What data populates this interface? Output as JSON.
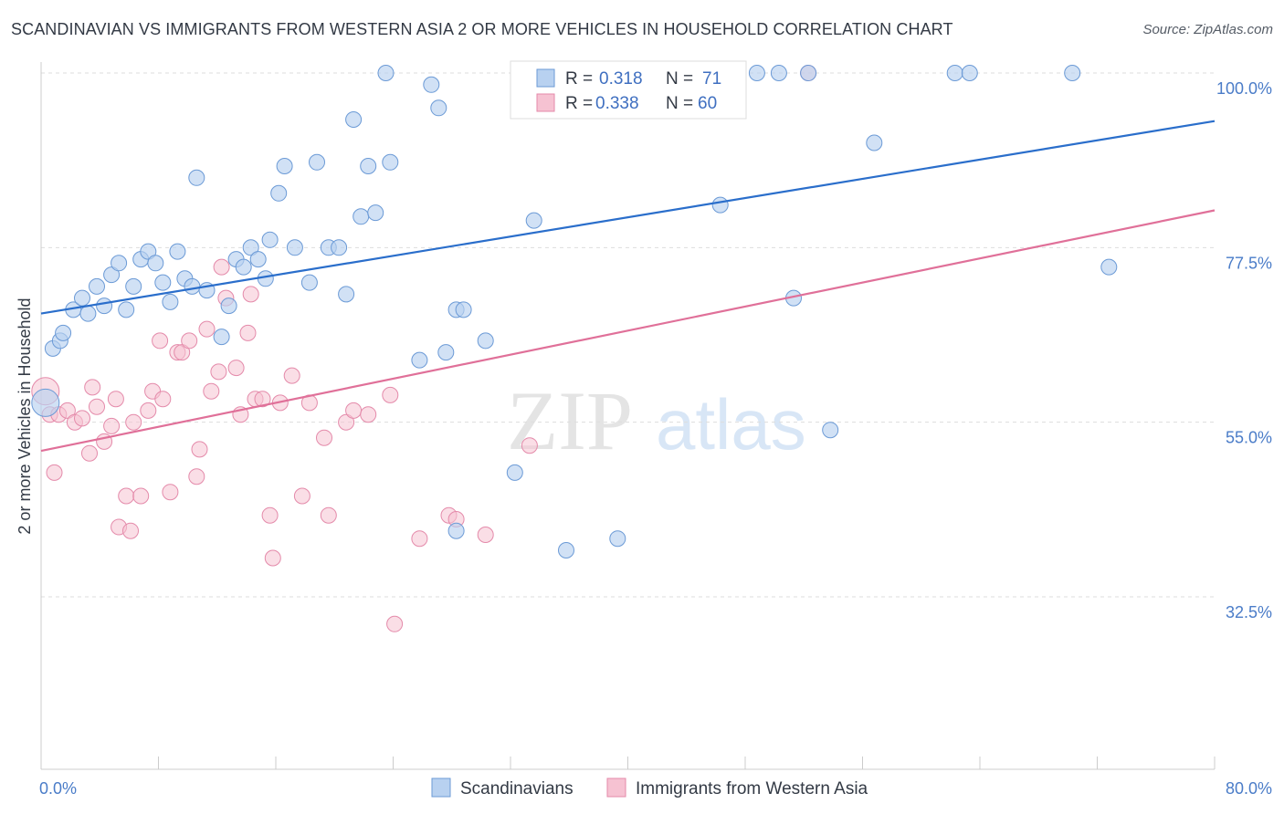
{
  "title": "SCANDINAVIAN VS IMMIGRANTS FROM WESTERN ASIA 2 OR MORE VEHICLES IN HOUSEHOLD CORRELATION CHART",
  "source": "Source: ZipAtlas.com",
  "watermark": {
    "zip": "ZIP",
    "atlas": "atlas"
  },
  "colors": {
    "blue_fill": "#b8d1f0",
    "blue_stroke": "#6b9ad6",
    "blue_line": "#2a6ecb",
    "pink_fill": "#f6c2d2",
    "pink_stroke": "#e48aaa",
    "pink_line": "#e07099",
    "axis_text": "#4a7cc8",
    "grid": "#dddddd"
  },
  "legend": {
    "series": [
      {
        "r_label": "R =",
        "r_value": "0.318",
        "n_label": "N =",
        "n_value": "71"
      },
      {
        "r_label": "R =",
        "r_value": "0.338",
        "n_label": "N =",
        "n_value": "60"
      }
    ]
  },
  "bottom_legend": [
    "Scandinavians",
    "Immigrants from Western Asia"
  ],
  "chart_data": {
    "type": "scatter",
    "xlabel": "",
    "ylabel": "2 or more Vehicles in Household",
    "xlim": [
      0,
      80
    ],
    "ylim": [
      10,
      104
    ],
    "x_tick_labels": [
      "0.0%",
      "80.0%"
    ],
    "y_ticks": [
      32.5,
      55.0,
      77.5,
      100.0
    ],
    "y_tick_labels": [
      "32.5%",
      "55.0%",
      "77.5%",
      "100.0%"
    ],
    "grid": true,
    "legend_position": "top-center",
    "series": [
      {
        "name": "Scandinavians",
        "color": "#b8d1f0",
        "trend": {
          "x": [
            0,
            80
          ],
          "y": [
            69.0,
            93.8
          ]
        },
        "points": [
          [
            0.3,
            57.5
          ],
          [
            0.8,
            64.5
          ],
          [
            1.3,
            65.5
          ],
          [
            1.5,
            66.5
          ],
          [
            2.2,
            69.5
          ],
          [
            2.8,
            71.0
          ],
          [
            3.2,
            69.0
          ],
          [
            3.8,
            72.5
          ],
          [
            4.3,
            70.0
          ],
          [
            4.8,
            74.0
          ],
          [
            5.3,
            75.5
          ],
          [
            5.8,
            69.5
          ],
          [
            6.3,
            72.5
          ],
          [
            6.8,
            76.0
          ],
          [
            7.3,
            77.0
          ],
          [
            7.8,
            75.5
          ],
          [
            8.3,
            73.0
          ],
          [
            8.8,
            70.5
          ],
          [
            9.3,
            77.0
          ],
          [
            9.8,
            73.5
          ],
          [
            10.3,
            72.5
          ],
          [
            10.6,
            86.5
          ],
          [
            11.3,
            72.0
          ],
          [
            12.3,
            66.0
          ],
          [
            12.8,
            70.0
          ],
          [
            13.3,
            76.0
          ],
          [
            13.8,
            75.0
          ],
          [
            14.3,
            77.5
          ],
          [
            14.8,
            76.0
          ],
          [
            15.3,
            73.5
          ],
          [
            15.6,
            78.5
          ],
          [
            16.2,
            84.5
          ],
          [
            16.6,
            88.0
          ],
          [
            17.3,
            77.5
          ],
          [
            18.8,
            88.5
          ],
          [
            18.3,
            73.0
          ],
          [
            19.6,
            77.5
          ],
          [
            20.3,
            77.5
          ],
          [
            20.8,
            71.5
          ],
          [
            21.3,
            94.0
          ],
          [
            21.8,
            81.5
          ],
          [
            22.3,
            88.0
          ],
          [
            22.8,
            82.0
          ],
          [
            23.5,
            100.0
          ],
          [
            23.8,
            88.5
          ],
          [
            25.8,
            63.0
          ],
          [
            26.6,
            98.5
          ],
          [
            27.1,
            95.5
          ],
          [
            27.6,
            64.0
          ],
          [
            28.3,
            69.5
          ],
          [
            28.3,
            41.0
          ],
          [
            28.8,
            69.5
          ],
          [
            30.3,
            65.5
          ],
          [
            32.3,
            48.5
          ],
          [
            33.6,
            81.0
          ],
          [
            35.8,
            38.5
          ],
          [
            37.8,
            100.0
          ],
          [
            39.3,
            40.0
          ],
          [
            40.3,
            100.0
          ],
          [
            41.3,
            100.0
          ],
          [
            46.3,
            83.0
          ],
          [
            48.8,
            100.0
          ],
          [
            50.3,
            100.0
          ],
          [
            51.3,
            71.0
          ],
          [
            52.3,
            100.0
          ],
          [
            53.8,
            54.0
          ],
          [
            56.8,
            91.0
          ],
          [
            72.8,
            75.0
          ],
          [
            62.3,
            100.0
          ],
          [
            63.3,
            100.0
          ],
          [
            70.3,
            100.0
          ]
        ]
      },
      {
        "name": "Immigrants from Western Asia",
        "color": "#f6c2d2",
        "trend": {
          "x": [
            0,
            80
          ],
          "y": [
            51.3,
            82.3
          ]
        },
        "points": [
          [
            0.3,
            59.0
          ],
          [
            0.6,
            56.0
          ],
          [
            0.9,
            48.5
          ],
          [
            1.2,
            56.0
          ],
          [
            1.8,
            56.5
          ],
          [
            2.3,
            55.0
          ],
          [
            2.8,
            55.5
          ],
          [
            3.3,
            51.0
          ],
          [
            3.5,
            59.5
          ],
          [
            3.8,
            57.0
          ],
          [
            4.3,
            52.5
          ],
          [
            4.8,
            54.5
          ],
          [
            5.1,
            58.0
          ],
          [
            5.3,
            41.5
          ],
          [
            5.8,
            45.5
          ],
          [
            6.1,
            41.0
          ],
          [
            6.3,
            55.0
          ],
          [
            6.8,
            45.5
          ],
          [
            7.3,
            56.5
          ],
          [
            7.6,
            59.0
          ],
          [
            8.1,
            65.5
          ],
          [
            8.3,
            58.0
          ],
          [
            8.8,
            46.0
          ],
          [
            9.3,
            64.0
          ],
          [
            9.6,
            64.0
          ],
          [
            10.1,
            65.5
          ],
          [
            10.6,
            48.0
          ],
          [
            10.8,
            51.5
          ],
          [
            11.3,
            67.0
          ],
          [
            11.6,
            59.0
          ],
          [
            12.1,
            61.5
          ],
          [
            12.3,
            75.0
          ],
          [
            12.6,
            71.0
          ],
          [
            13.3,
            62.0
          ],
          [
            13.6,
            56.0
          ],
          [
            14.1,
            66.5
          ],
          [
            14.3,
            71.5
          ],
          [
            14.6,
            58.0
          ],
          [
            15.1,
            58.0
          ],
          [
            15.6,
            43.0
          ],
          [
            15.8,
            37.5
          ],
          [
            16.3,
            57.5
          ],
          [
            17.1,
            61.0
          ],
          [
            17.8,
            45.5
          ],
          [
            18.3,
            57.5
          ],
          [
            19.3,
            53.0
          ],
          [
            19.6,
            43.0
          ],
          [
            20.8,
            55.0
          ],
          [
            21.3,
            56.5
          ],
          [
            22.3,
            56.0
          ],
          [
            23.8,
            58.5
          ],
          [
            24.1,
            29.0
          ],
          [
            25.8,
            40.0
          ],
          [
            27.8,
            43.0
          ],
          [
            28.3,
            42.5
          ],
          [
            30.3,
            40.5
          ],
          [
            33.3,
            52.0
          ],
          [
            36.8,
            100.0
          ],
          [
            39.3,
            100.0
          ],
          [
            52.3,
            100.0
          ]
        ]
      }
    ]
  }
}
